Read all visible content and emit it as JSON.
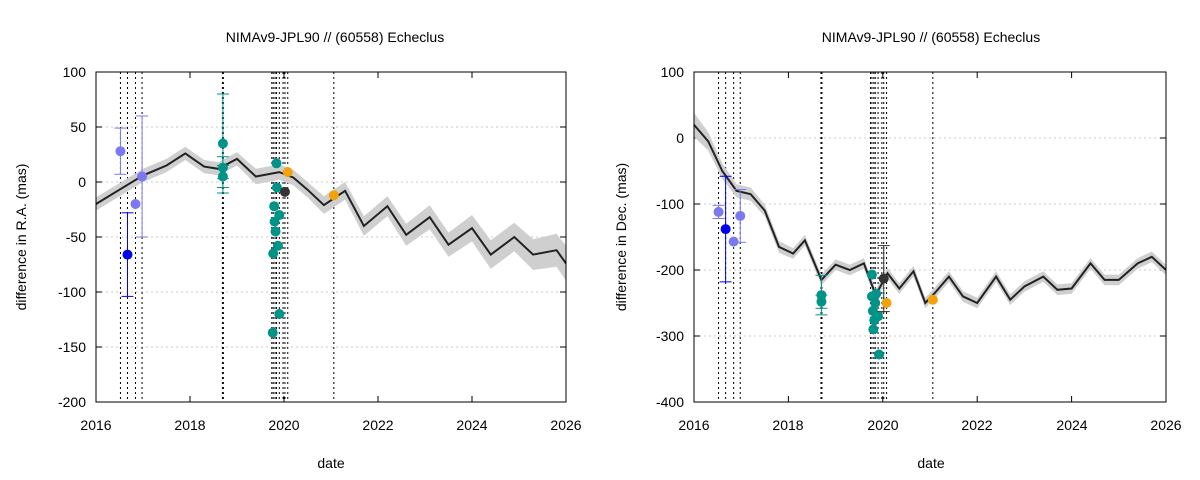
{
  "chart_data": [
    {
      "type": "scatter",
      "title": "NIMAv9-JPL90 // (60558) Echeclus",
      "xlabel": "date",
      "ylabel": "difference in R.A. (mas)",
      "xlim": [
        2016,
        2026
      ],
      "ylim": [
        -200,
        100
      ],
      "xticks": [
        "2016",
        "2018",
        "2020",
        "2022",
        "2024",
        "2026"
      ],
      "yticks": [
        "100",
        "50",
        "0",
        "-50",
        "-100",
        "-150",
        "-200"
      ],
      "grid": true,
      "vlines": [
        2016.52,
        2016.67,
        2016.84,
        2016.98,
        2018.69,
        2018.71,
        2019.74,
        2019.77,
        2019.81,
        2019.84,
        2019.9,
        2019.98,
        2020.02,
        2020.08,
        2021.06
      ],
      "model": {
        "name": "ephemeris difference",
        "x": [
          2016.0,
          2016.5,
          2017.0,
          2017.5,
          2017.9,
          2018.3,
          2018.6,
          2019.0,
          2019.4,
          2019.9,
          2020.2,
          2020.5,
          2020.85,
          2021.3,
          2021.7,
          2022.2,
          2022.6,
          2023.1,
          2023.5,
          2024.0,
          2024.4,
          2024.9,
          2025.3,
          2025.8,
          2026.0
        ],
        "y": [
          -20,
          -7,
          6,
          15,
          26,
          14,
          12,
          21,
          5,
          9,
          4,
          -7,
          -21,
          -8,
          -40,
          -22,
          -48,
          -32,
          -57,
          -42,
          -66,
          -50,
          -66,
          -62,
          -74
        ],
        "uncertainty": [
          6,
          6,
          6,
          6,
          6,
          6,
          6,
          6,
          7,
          7,
          7,
          7,
          8,
          8,
          9,
          9,
          10,
          11,
          11,
          12,
          13,
          13,
          14,
          15,
          16
        ]
      },
      "series": [
        {
          "color": "#7b79f2",
          "points": [
            {
              "x": 2016.52,
              "y": 28,
              "err": 21
            },
            {
              "x": 2016.84,
              "y": -20,
              "err": 0
            },
            {
              "x": 2016.98,
              "y": 5,
              "err": 55
            }
          ]
        },
        {
          "color": "#0000ee",
          "points": [
            {
              "x": 2016.67,
              "y": -66,
              "err": 38
            }
          ]
        },
        {
          "color": "#009488",
          "points": [
            {
              "x": 2018.7,
              "y": 35,
              "err": 45
            },
            {
              "x": 2018.7,
              "y": 13,
              "err": 10
            },
            {
              "x": 2018.7,
              "y": 5,
              "err": 10
            },
            {
              "x": 2019.76,
              "y": -137,
              "err": 0
            },
            {
              "x": 2019.77,
              "y": -65,
              "err": 0
            },
            {
              "x": 2019.79,
              "y": -22,
              "err": 0
            },
            {
              "x": 2019.8,
              "y": -36,
              "err": 0
            },
            {
              "x": 2019.82,
              "y": -45,
              "err": 0
            },
            {
              "x": 2019.84,
              "y": 17,
              "err": 0
            },
            {
              "x": 2019.85,
              "y": -5,
              "err": 0
            },
            {
              "x": 2019.87,
              "y": -58,
              "err": 0
            },
            {
              "x": 2019.9,
              "y": -30,
              "err": 0
            },
            {
              "x": 2019.9,
              "y": -120,
              "err": 0
            }
          ]
        },
        {
          "color": "#333333",
          "points": [
            {
              "x": 2020.02,
              "y": -9,
              "err": 0
            }
          ]
        },
        {
          "color": "#f4a20a",
          "points": [
            {
              "x": 2020.08,
              "y": 9,
              "err": 0
            },
            {
              "x": 2021.06,
              "y": -12,
              "err": 0
            }
          ]
        }
      ]
    },
    {
      "type": "scatter",
      "title": "NIMAv9-JPL90 // (60558) Echeclus",
      "xlabel": "date",
      "ylabel": "difference in Dec. (mas)",
      "xlim": [
        2016,
        2026
      ],
      "ylim": [
        -400,
        100
      ],
      "xticks": [
        "2016",
        "2018",
        "2020",
        "2022",
        "2024",
        "2026"
      ],
      "yticks": [
        "100",
        "0",
        "-100",
        "-200",
        "-300",
        "-400"
      ],
      "grid": true,
      "vlines": [
        2016.52,
        2016.67,
        2016.84,
        2016.98,
        2018.69,
        2018.71,
        2019.74,
        2019.77,
        2019.81,
        2019.84,
        2019.9,
        2019.98,
        2020.02,
        2020.08,
        2021.06
      ],
      "model": {
        "name": "ephemeris difference",
        "x": [
          2016.0,
          2016.3,
          2016.6,
          2016.9,
          2017.2,
          2017.5,
          2017.8,
          2018.1,
          2018.35,
          2018.7,
          2019.0,
          2019.3,
          2019.6,
          2019.85,
          2020.1,
          2020.35,
          2020.65,
          2020.9,
          2021.1,
          2021.4,
          2021.7,
          2022.0,
          2022.4,
          2022.7,
          2023.0,
          2023.4,
          2023.7,
          2024.0,
          2024.4,
          2024.7,
          2025.0,
          2025.4,
          2025.7,
          2026.0
        ],
        "y": [
          20,
          -5,
          -50,
          -80,
          -85,
          -110,
          -165,
          -175,
          -155,
          -215,
          -192,
          -200,
          -190,
          -238,
          -205,
          -228,
          -202,
          -250,
          -235,
          -210,
          -240,
          -250,
          -210,
          -245,
          -225,
          -210,
          -230,
          -228,
          -190,
          -215,
          -215,
          -190,
          -180,
          -200
        ],
        "uncertainty": [
          18,
          14,
          12,
          10,
          10,
          9,
          9,
          8,
          8,
          8,
          8,
          8,
          8,
          8,
          8,
          8,
          8,
          8,
          8,
          8,
          8,
          8,
          8,
          8,
          8,
          8,
          8,
          8,
          8,
          8,
          8,
          8,
          8,
          8
        ]
      },
      "series": [
        {
          "color": "#7b79f2",
          "points": [
            {
              "x": 2016.52,
              "y": -112,
              "err": 10
            },
            {
              "x": 2016.84,
              "y": -157,
              "err": 0
            },
            {
              "x": 2016.98,
              "y": -118,
              "err": 40
            }
          ]
        },
        {
          "color": "#0000ee",
          "points": [
            {
              "x": 2016.67,
              "y": -138,
              "err": 80
            }
          ]
        },
        {
          "color": "#009488",
          "points": [
            {
              "x": 2018.7,
              "y": -238,
              "err": 30
            },
            {
              "x": 2018.7,
              "y": -248,
              "err": 10
            },
            {
              "x": 2019.77,
              "y": -207,
              "err": 0
            },
            {
              "x": 2019.77,
              "y": -240,
              "err": 0
            },
            {
              "x": 2019.79,
              "y": -262,
              "err": 0
            },
            {
              "x": 2019.8,
              "y": -290,
              "err": 0
            },
            {
              "x": 2019.82,
              "y": -276,
              "err": 0
            },
            {
              "x": 2019.84,
              "y": -250,
              "err": 0
            },
            {
              "x": 2019.86,
              "y": -236,
              "err": 0
            },
            {
              "x": 2019.9,
              "y": -270,
              "err": 0
            },
            {
              "x": 2019.92,
              "y": -328,
              "err": 0
            }
          ]
        },
        {
          "color": "#333333",
          "points": [
            {
              "x": 2020.02,
              "y": -213,
              "err": 50
            }
          ]
        },
        {
          "color": "#f4a20a",
          "points": [
            {
              "x": 2020.08,
              "y": -250,
              "err": 0
            },
            {
              "x": 2021.06,
              "y": -245,
              "err": 0
            }
          ]
        }
      ]
    }
  ]
}
